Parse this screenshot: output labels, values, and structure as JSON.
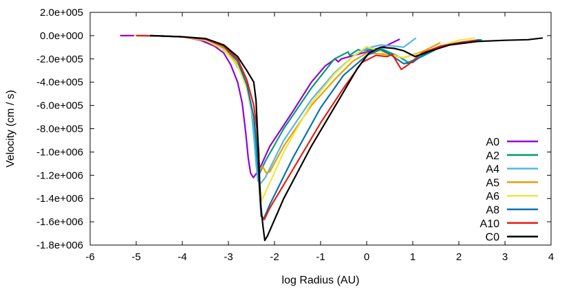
{
  "chart_data": {
    "type": "line",
    "title": "",
    "xlabel": "log Radius (AU)",
    "ylabel": "Velocity (cm / s)",
    "xlim": [
      -6,
      4
    ],
    "ylim": [
      -1800000,
      200000
    ],
    "x_ticks": [
      -6,
      -5,
      -4,
      -3,
      -2,
      -1,
      0,
      1,
      2,
      3,
      4
    ],
    "x_tick_labels": [
      "-6",
      "-5",
      "-4",
      "-3",
      "-2",
      "-1",
      "0",
      "1",
      "2",
      "3",
      "4"
    ],
    "y_ticks": [
      200000,
      0,
      -200000,
      -400000,
      -600000,
      -800000,
      -1000000,
      -1200000,
      -1400000,
      -1600000,
      -1800000
    ],
    "y_tick_labels": [
      "2.0e+005",
      "0.0e+000",
      "-2.0e+005",
      "-4.0e+005",
      "-6.0e+005",
      "-8.0e+005",
      "-1.0e+006",
      "-1.2e+006",
      "-1.4e+006",
      "-1.6e+006",
      "-1.8e+006"
    ],
    "legend_position": "bottom-right",
    "grid": false,
    "series": [
      {
        "name": "A0",
        "color": "#9400d3",
        "points": [
          [
            -5.35,
            0
          ],
          [
            -5.0,
            0
          ],
          [
            -4.5,
            -2000
          ],
          [
            -4.0,
            -10000
          ],
          [
            -3.6,
            -40000
          ],
          [
            -3.3,
            -90000
          ],
          [
            -3.1,
            -150000
          ],
          [
            -2.95,
            -250000
          ],
          [
            -2.8,
            -400000
          ],
          [
            -2.7,
            -580000
          ],
          [
            -2.62,
            -850000
          ],
          [
            -2.57,
            -1050000
          ],
          [
            -2.52,
            -1180000
          ],
          [
            -2.46,
            -1220000
          ],
          [
            -2.42,
            -1200000
          ],
          [
            -2.33,
            -1150000
          ],
          [
            -2.1,
            -950000
          ],
          [
            -1.6,
            -650000
          ],
          [
            -1.2,
            -400000
          ],
          [
            -0.9,
            -260000
          ],
          [
            -0.68,
            -200000
          ],
          [
            -0.62,
            -225000
          ],
          [
            -0.55,
            -200000
          ],
          [
            0.0,
            -140000
          ],
          [
            0.4,
            -90000
          ],
          [
            0.72,
            -30000
          ]
        ]
      },
      {
        "name": "A2",
        "color": "#009e73",
        "points": [
          [
            -5.0,
            0
          ],
          [
            -4.5,
            -2000
          ],
          [
            -4.0,
            -10000
          ],
          [
            -3.6,
            -30000
          ],
          [
            -3.2,
            -80000
          ],
          [
            -3.0,
            -150000
          ],
          [
            -2.8,
            -250000
          ],
          [
            -2.6,
            -420000
          ],
          [
            -2.5,
            -620000
          ],
          [
            -2.43,
            -820000
          ],
          [
            -2.38,
            -1050000
          ],
          [
            -2.35,
            -1230000
          ],
          [
            -2.32,
            -1180000
          ],
          [
            -2.2,
            -1080000
          ],
          [
            -1.8,
            -800000
          ],
          [
            -1.2,
            -450000
          ],
          [
            -0.7,
            -200000
          ],
          [
            -0.4,
            -140000
          ],
          [
            -0.37,
            -170000
          ],
          [
            -0.3,
            -150000
          ],
          [
            -0.18,
            -120000
          ],
          [
            -0.13,
            -130000
          ],
          [
            0.3,
            -110000
          ],
          [
            0.7,
            -180000
          ],
          [
            0.9,
            -230000
          ],
          [
            1.2,
            -180000
          ],
          [
            1.6,
            -100000
          ],
          [
            2.0,
            -60000
          ],
          [
            2.5,
            -35000
          ]
        ]
      },
      {
        "name": "A4",
        "color": "#56b4e9",
        "points": [
          [
            -5.0,
            0
          ],
          [
            -4.5,
            -2000
          ],
          [
            -4.0,
            -10000
          ],
          [
            -3.5,
            -40000
          ],
          [
            -3.2,
            -90000
          ],
          [
            -2.95,
            -180000
          ],
          [
            -2.75,
            -300000
          ],
          [
            -2.6,
            -450000
          ],
          [
            -2.5,
            -650000
          ],
          [
            -2.44,
            -900000
          ],
          [
            -2.4,
            -1100000
          ],
          [
            -2.36,
            -1250000
          ],
          [
            -2.3,
            -1270000
          ],
          [
            -2.2,
            -1220000
          ],
          [
            -1.8,
            -900000
          ],
          [
            -1.2,
            -550000
          ],
          [
            -0.7,
            -320000
          ],
          [
            -0.3,
            -180000
          ],
          [
            0.0,
            -110000
          ],
          [
            0.3,
            -80000
          ],
          [
            0.6,
            -90000
          ],
          [
            0.8,
            -100000
          ],
          [
            1.07,
            -20000
          ]
        ]
      },
      {
        "name": "A5",
        "color": "#e69f00",
        "points": [
          [
            -4.7,
            0
          ],
          [
            -4.0,
            -10000
          ],
          [
            -3.5,
            -30000
          ],
          [
            -3.1,
            -100000
          ],
          [
            -2.8,
            -250000
          ],
          [
            -2.6,
            -450000
          ],
          [
            -2.45,
            -700000
          ],
          [
            -2.37,
            -950000
          ],
          [
            -2.32,
            -1150000
          ],
          [
            -2.25,
            -1130000
          ],
          [
            -2.18,
            -1180000
          ],
          [
            -2.1,
            -1170000
          ],
          [
            -1.8,
            -950000
          ],
          [
            -1.2,
            -600000
          ],
          [
            -0.7,
            -380000
          ],
          [
            -0.3,
            -220000
          ],
          [
            0.0,
            -150000
          ],
          [
            0.4,
            -160000
          ],
          [
            0.8,
            -190000
          ],
          [
            1.2,
            -140000
          ],
          [
            1.6,
            -60000
          ]
        ]
      },
      {
        "name": "A6",
        "color": "#f0e442",
        "points": [
          [
            -5.05,
            0
          ],
          [
            -4.5,
            -2000
          ],
          [
            -4.0,
            -12000
          ],
          [
            -3.5,
            -40000
          ],
          [
            -3.1,
            -120000
          ],
          [
            -2.8,
            -260000
          ],
          [
            -2.6,
            -450000
          ],
          [
            -2.45,
            -720000
          ],
          [
            -2.37,
            -1000000
          ],
          [
            -2.32,
            -1250000
          ],
          [
            -2.28,
            -1420000
          ],
          [
            -2.2,
            -1350000
          ],
          [
            -1.8,
            -1000000
          ],
          [
            -1.2,
            -580000
          ],
          [
            -0.7,
            -330000
          ],
          [
            -0.3,
            -180000
          ],
          [
            0.0,
            -95000
          ],
          [
            0.4,
            -150000
          ],
          [
            0.8,
            -190000
          ],
          [
            1.2,
            -150000
          ],
          [
            1.6,
            -90000
          ],
          [
            2.0,
            -40000
          ],
          [
            2.35,
            -20000
          ]
        ]
      },
      {
        "name": "A8",
        "color": "#0072b2",
        "points": [
          [
            -4.7,
            0
          ],
          [
            -4.0,
            -10000
          ],
          [
            -3.5,
            -30000
          ],
          [
            -3.1,
            -90000
          ],
          [
            -2.8,
            -220000
          ],
          [
            -2.6,
            -420000
          ],
          [
            -2.45,
            -700000
          ],
          [
            -2.37,
            -1000000
          ],
          [
            -2.33,
            -1300000
          ],
          [
            -2.29,
            -1550000
          ],
          [
            -2.24,
            -1580000
          ],
          [
            -2.1,
            -1450000
          ],
          [
            -1.6,
            -1050000
          ],
          [
            -1.0,
            -620000
          ],
          [
            -0.5,
            -340000
          ],
          [
            0.0,
            -170000
          ],
          [
            0.3,
            -120000
          ],
          [
            0.5,
            -160000
          ],
          [
            0.8,
            -240000
          ],
          [
            1.0,
            -230000
          ],
          [
            1.2,
            -170000
          ],
          [
            1.6,
            -100000
          ],
          [
            2.0,
            -60000
          ],
          [
            2.45,
            -35000
          ]
        ]
      },
      {
        "name": "A10",
        "color": "#e51e10",
        "points": [
          [
            -5.0,
            0
          ],
          [
            -4.5,
            -2000
          ],
          [
            -4.0,
            -10000
          ],
          [
            -3.5,
            -30000
          ],
          [
            -3.1,
            -90000
          ],
          [
            -2.8,
            -200000
          ],
          [
            -2.6,
            -380000
          ],
          [
            -2.45,
            -600000
          ],
          [
            -2.38,
            -800000
          ],
          [
            -2.34,
            -1000000
          ],
          [
            -2.32,
            -1300000
          ],
          [
            -2.28,
            -1550000
          ],
          [
            -2.22,
            -1580000
          ],
          [
            -2.1,
            -1480000
          ],
          [
            -1.6,
            -1150000
          ],
          [
            -1.0,
            -750000
          ],
          [
            -0.5,
            -450000
          ],
          [
            -0.1,
            -230000
          ],
          [
            0.2,
            -170000
          ],
          [
            0.45,
            -180000
          ],
          [
            0.55,
            -160000
          ],
          [
            0.75,
            -290000
          ],
          [
            0.9,
            -250000
          ],
          [
            1.2,
            -150000
          ],
          [
            1.6,
            -90000
          ],
          [
            2.0,
            -60000
          ],
          [
            2.4,
            -40000
          ]
        ]
      },
      {
        "name": "C0",
        "color": "#000000",
        "points": [
          [
            -4.7,
            0
          ],
          [
            -4.0,
            -10000
          ],
          [
            -3.5,
            -25000
          ],
          [
            -3.1,
            -80000
          ],
          [
            -2.8,
            -180000
          ],
          [
            -2.6,
            -300000
          ],
          [
            -2.45,
            -400000
          ],
          [
            -2.4,
            -560000
          ],
          [
            -2.36,
            -900000
          ],
          [
            -2.33,
            -1200000
          ],
          [
            -2.3,
            -1450000
          ],
          [
            -2.25,
            -1640000
          ],
          [
            -2.21,
            -1760000
          ],
          [
            -2.15,
            -1720000
          ],
          [
            -1.8,
            -1400000
          ],
          [
            -1.2,
            -950000
          ],
          [
            -0.6,
            -550000
          ],
          [
            -0.2,
            -280000
          ],
          [
            0.05,
            -150000
          ],
          [
            0.3,
            -100000
          ],
          [
            0.6,
            -110000
          ],
          [
            0.8,
            -130000
          ],
          [
            1.05,
            -180000
          ],
          [
            1.4,
            -130000
          ],
          [
            1.8,
            -80000
          ],
          [
            2.4,
            -50000
          ],
          [
            3.0,
            -40000
          ],
          [
            3.5,
            -35000
          ],
          [
            3.82,
            -20000
          ]
        ]
      }
    ]
  }
}
